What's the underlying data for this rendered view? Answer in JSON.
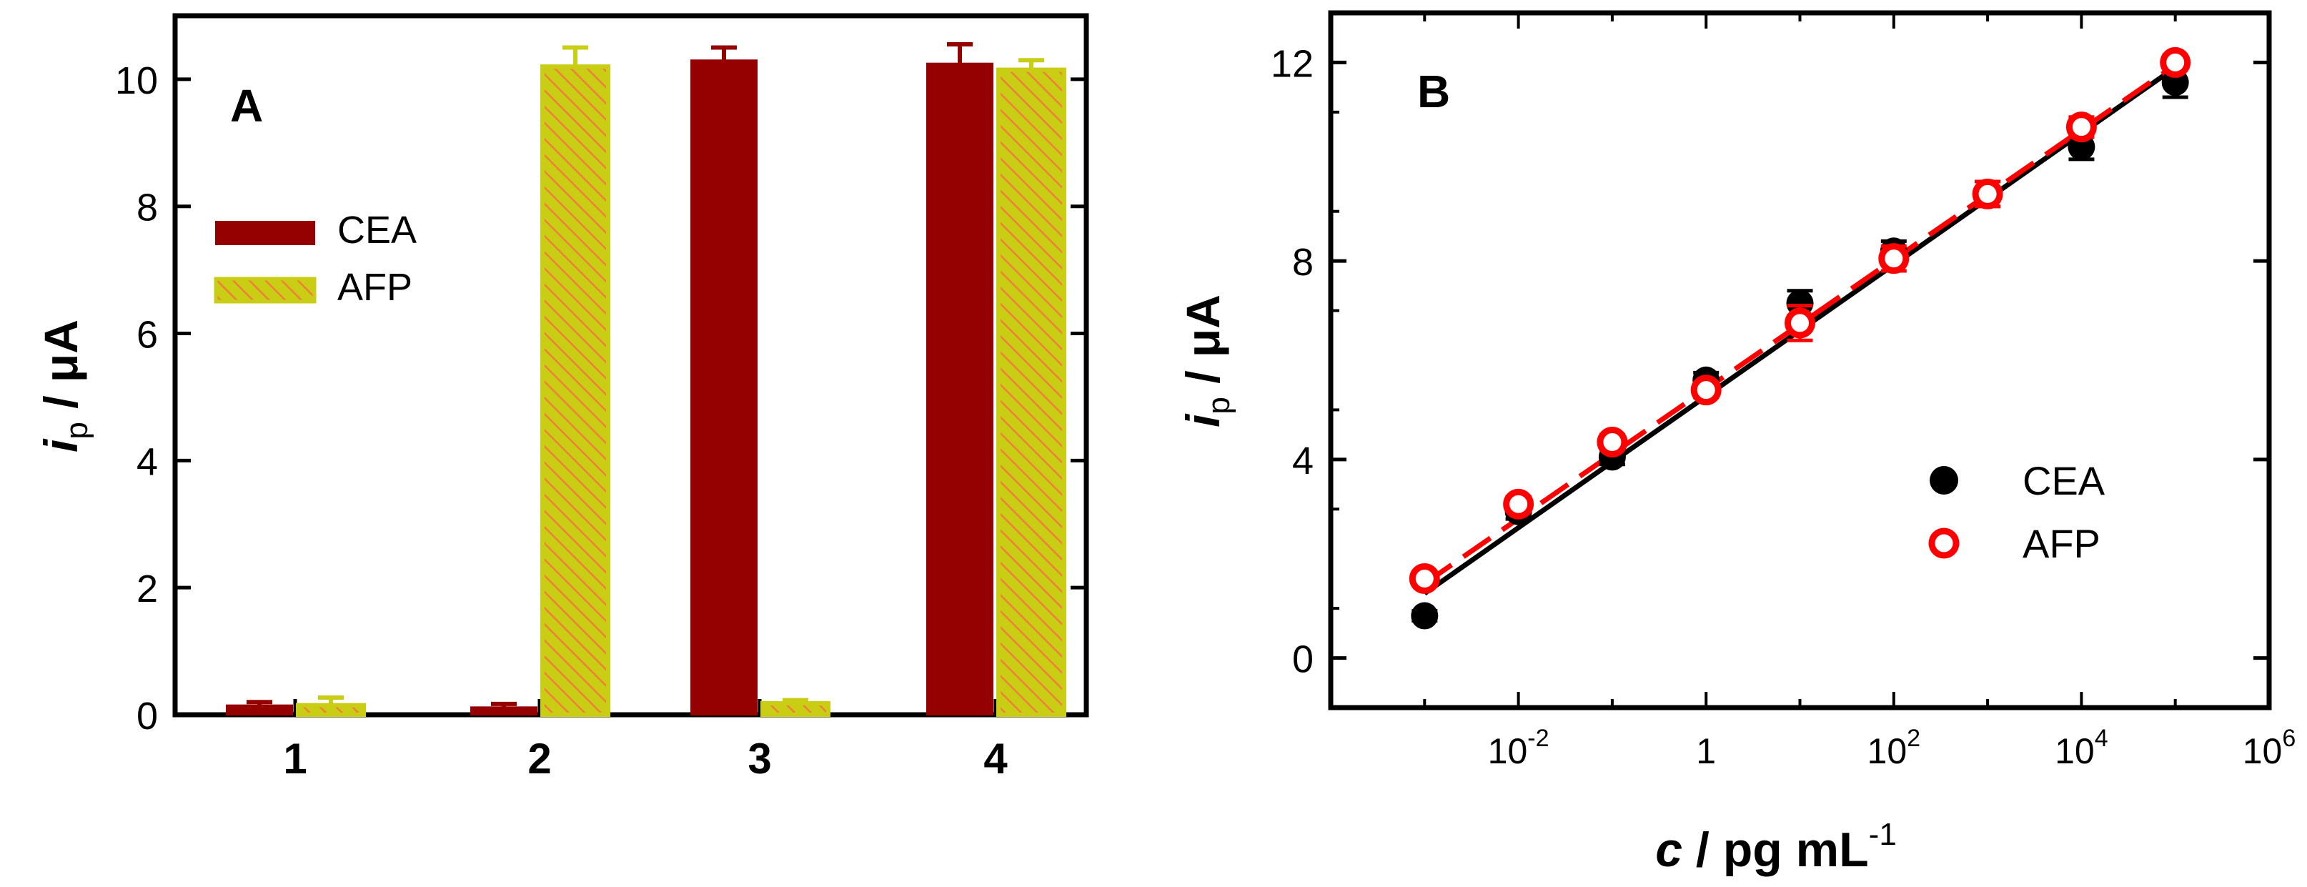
{
  "figure": {
    "panels": [
      "A",
      "B"
    ]
  },
  "colors": {
    "cea_bar": "#950000",
    "afp_bar_fill": "#c9cd14",
    "afp_bar_hatch": "#f07f3c",
    "cea_marker": "#000000",
    "afp_marker": "#ff0000",
    "axis": "#000000",
    "background": "#ffffff"
  },
  "chart_data": [
    {
      "panel": "A",
      "type": "bar",
      "panel_label": "A",
      "ylabel_main": "i",
      "ylabel_sub": "p",
      "ylabel_rest": " / μA",
      "xlabel": "",
      "categories": [
        "1",
        "2",
        "3",
        "4"
      ],
      "ylim": [
        0,
        11
      ],
      "yticks": [
        0,
        2,
        4,
        6,
        8,
        10
      ],
      "ytick_labels": [
        "0",
        "2",
        "4",
        "6",
        "8",
        "10"
      ],
      "legend_position": "left",
      "series": [
        {
          "name": "CEA",
          "values": [
            0.15,
            0.12,
            10.3,
            10.25
          ],
          "errors": [
            0.05,
            0.05,
            0.2,
            0.3
          ]
        },
        {
          "name": "AFP",
          "values": [
            0.15,
            10.2,
            0.18,
            10.15
          ],
          "errors": [
            0.12,
            0.3,
            0.05,
            0.15
          ]
        }
      ]
    },
    {
      "panel": "B",
      "type": "scatter",
      "panel_label": "B",
      "ylabel_main": "i",
      "ylabel_sub": "p",
      "ylabel_rest": " / μA",
      "xlabel_main": "c",
      "xlabel_rest": " / pg mL",
      "xlabel_sup": "-1",
      "x_scale": "log",
      "xlim": [
        0.0001,
        1000000
      ],
      "ylim": [
        -1,
        13
      ],
      "yticks": [
        0,
        4,
        8,
        12
      ],
      "ytick_labels": [
        "0",
        "4",
        "8",
        "12"
      ],
      "xtick_labels": [
        {
          "value": 0.01,
          "base": "10",
          "exp": "-2"
        },
        {
          "value": 1,
          "base": "1",
          "exp": ""
        },
        {
          "value": 100,
          "base": "10",
          "exp": "2"
        },
        {
          "value": 10000,
          "base": "10",
          "exp": "4"
        },
        {
          "value": 1000000,
          "base": "10",
          "exp": "6"
        }
      ],
      "legend_position": "bottom-right",
      "series": [
        {
          "name": "CEA",
          "x": [
            0.001,
            0.01,
            0.1,
            1,
            10,
            100,
            1000,
            10000,
            100000
          ],
          "y": [
            0.85,
            2.95,
            4.05,
            5.6,
            7.15,
            8.2,
            9.35,
            10.3,
            11.6
          ],
          "errors": [
            0.1,
            0.15,
            0.15,
            0.15,
            0.25,
            0.2,
            0.25,
            0.25,
            0.3
          ],
          "fit": {
            "x": [
              0.001,
              100000
            ],
            "y": [
              1.3,
              11.9
            ]
          }
        },
        {
          "name": "AFP",
          "x": [
            0.001,
            0.01,
            0.1,
            1,
            10,
            100,
            1000,
            10000,
            100000
          ],
          "y": [
            1.6,
            3.1,
            4.35,
            5.4,
            6.75,
            8.05,
            9.35,
            10.7,
            12.0
          ],
          "errors": [
            0.1,
            0.15,
            0.15,
            0.15,
            0.35,
            0.25,
            0.25,
            0.2,
            0.15
          ],
          "fit": {
            "x": [
              0.001,
              100000
            ],
            "y": [
              1.5,
              11.95
            ]
          }
        }
      ]
    }
  ]
}
